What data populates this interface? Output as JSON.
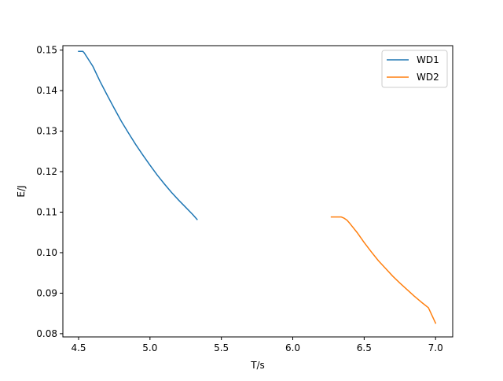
{
  "chart_data": {
    "type": "line",
    "title": "",
    "xlabel": "T/s",
    "ylabel": "E/J",
    "xlim": [
      4.39,
      7.12
    ],
    "ylim": [
      0.0792,
      0.1511
    ],
    "xticks": [
      4.5,
      5.0,
      5.5,
      6.0,
      6.5,
      7.0
    ],
    "xtick_labels": [
      "4.5",
      "5.0",
      "5.5",
      "6.0",
      "6.5",
      "7.0"
    ],
    "yticks": [
      0.08,
      0.09,
      0.1,
      0.11,
      0.12,
      0.13,
      0.14,
      0.15
    ],
    "ytick_labels": [
      "0.08",
      "0.09",
      "0.10",
      "0.11",
      "0.12",
      "0.13",
      "0.14",
      "0.15"
    ],
    "grid": false,
    "legend_position": "top-right",
    "series": [
      {
        "name": "WD1",
        "color": "#1f77b4",
        "x": [
          4.5,
          4.53,
          4.54,
          4.6,
          4.65,
          4.7,
          4.75,
          4.8,
          4.85,
          4.9,
          4.95,
          5.0,
          5.05,
          5.1,
          5.15,
          5.2,
          5.25,
          5.3,
          5.33
        ],
        "y": [
          0.1497,
          0.1497,
          0.1493,
          0.146,
          0.1423,
          0.1389,
          0.1356,
          0.1324,
          0.1295,
          0.1267,
          0.1241,
          0.1216,
          0.1192,
          0.117,
          0.1149,
          0.113,
          0.1112,
          0.1094,
          0.1082
        ]
      },
      {
        "name": "WD2",
        "color": "#ff7f0e",
        "x": [
          6.27,
          6.3,
          6.34,
          6.36,
          6.38,
          6.4,
          6.45,
          6.5,
          6.55,
          6.6,
          6.65,
          6.7,
          6.75,
          6.8,
          6.85,
          6.9,
          6.95,
          7.0
        ],
        "y": [
          0.1088,
          0.1088,
          0.1088,
          0.1085,
          0.108,
          0.1072,
          0.105,
          0.1025,
          0.1002,
          0.098,
          0.0961,
          0.0942,
          0.0925,
          0.0909,
          0.0893,
          0.0878,
          0.0864,
          0.0826
        ]
      }
    ]
  }
}
